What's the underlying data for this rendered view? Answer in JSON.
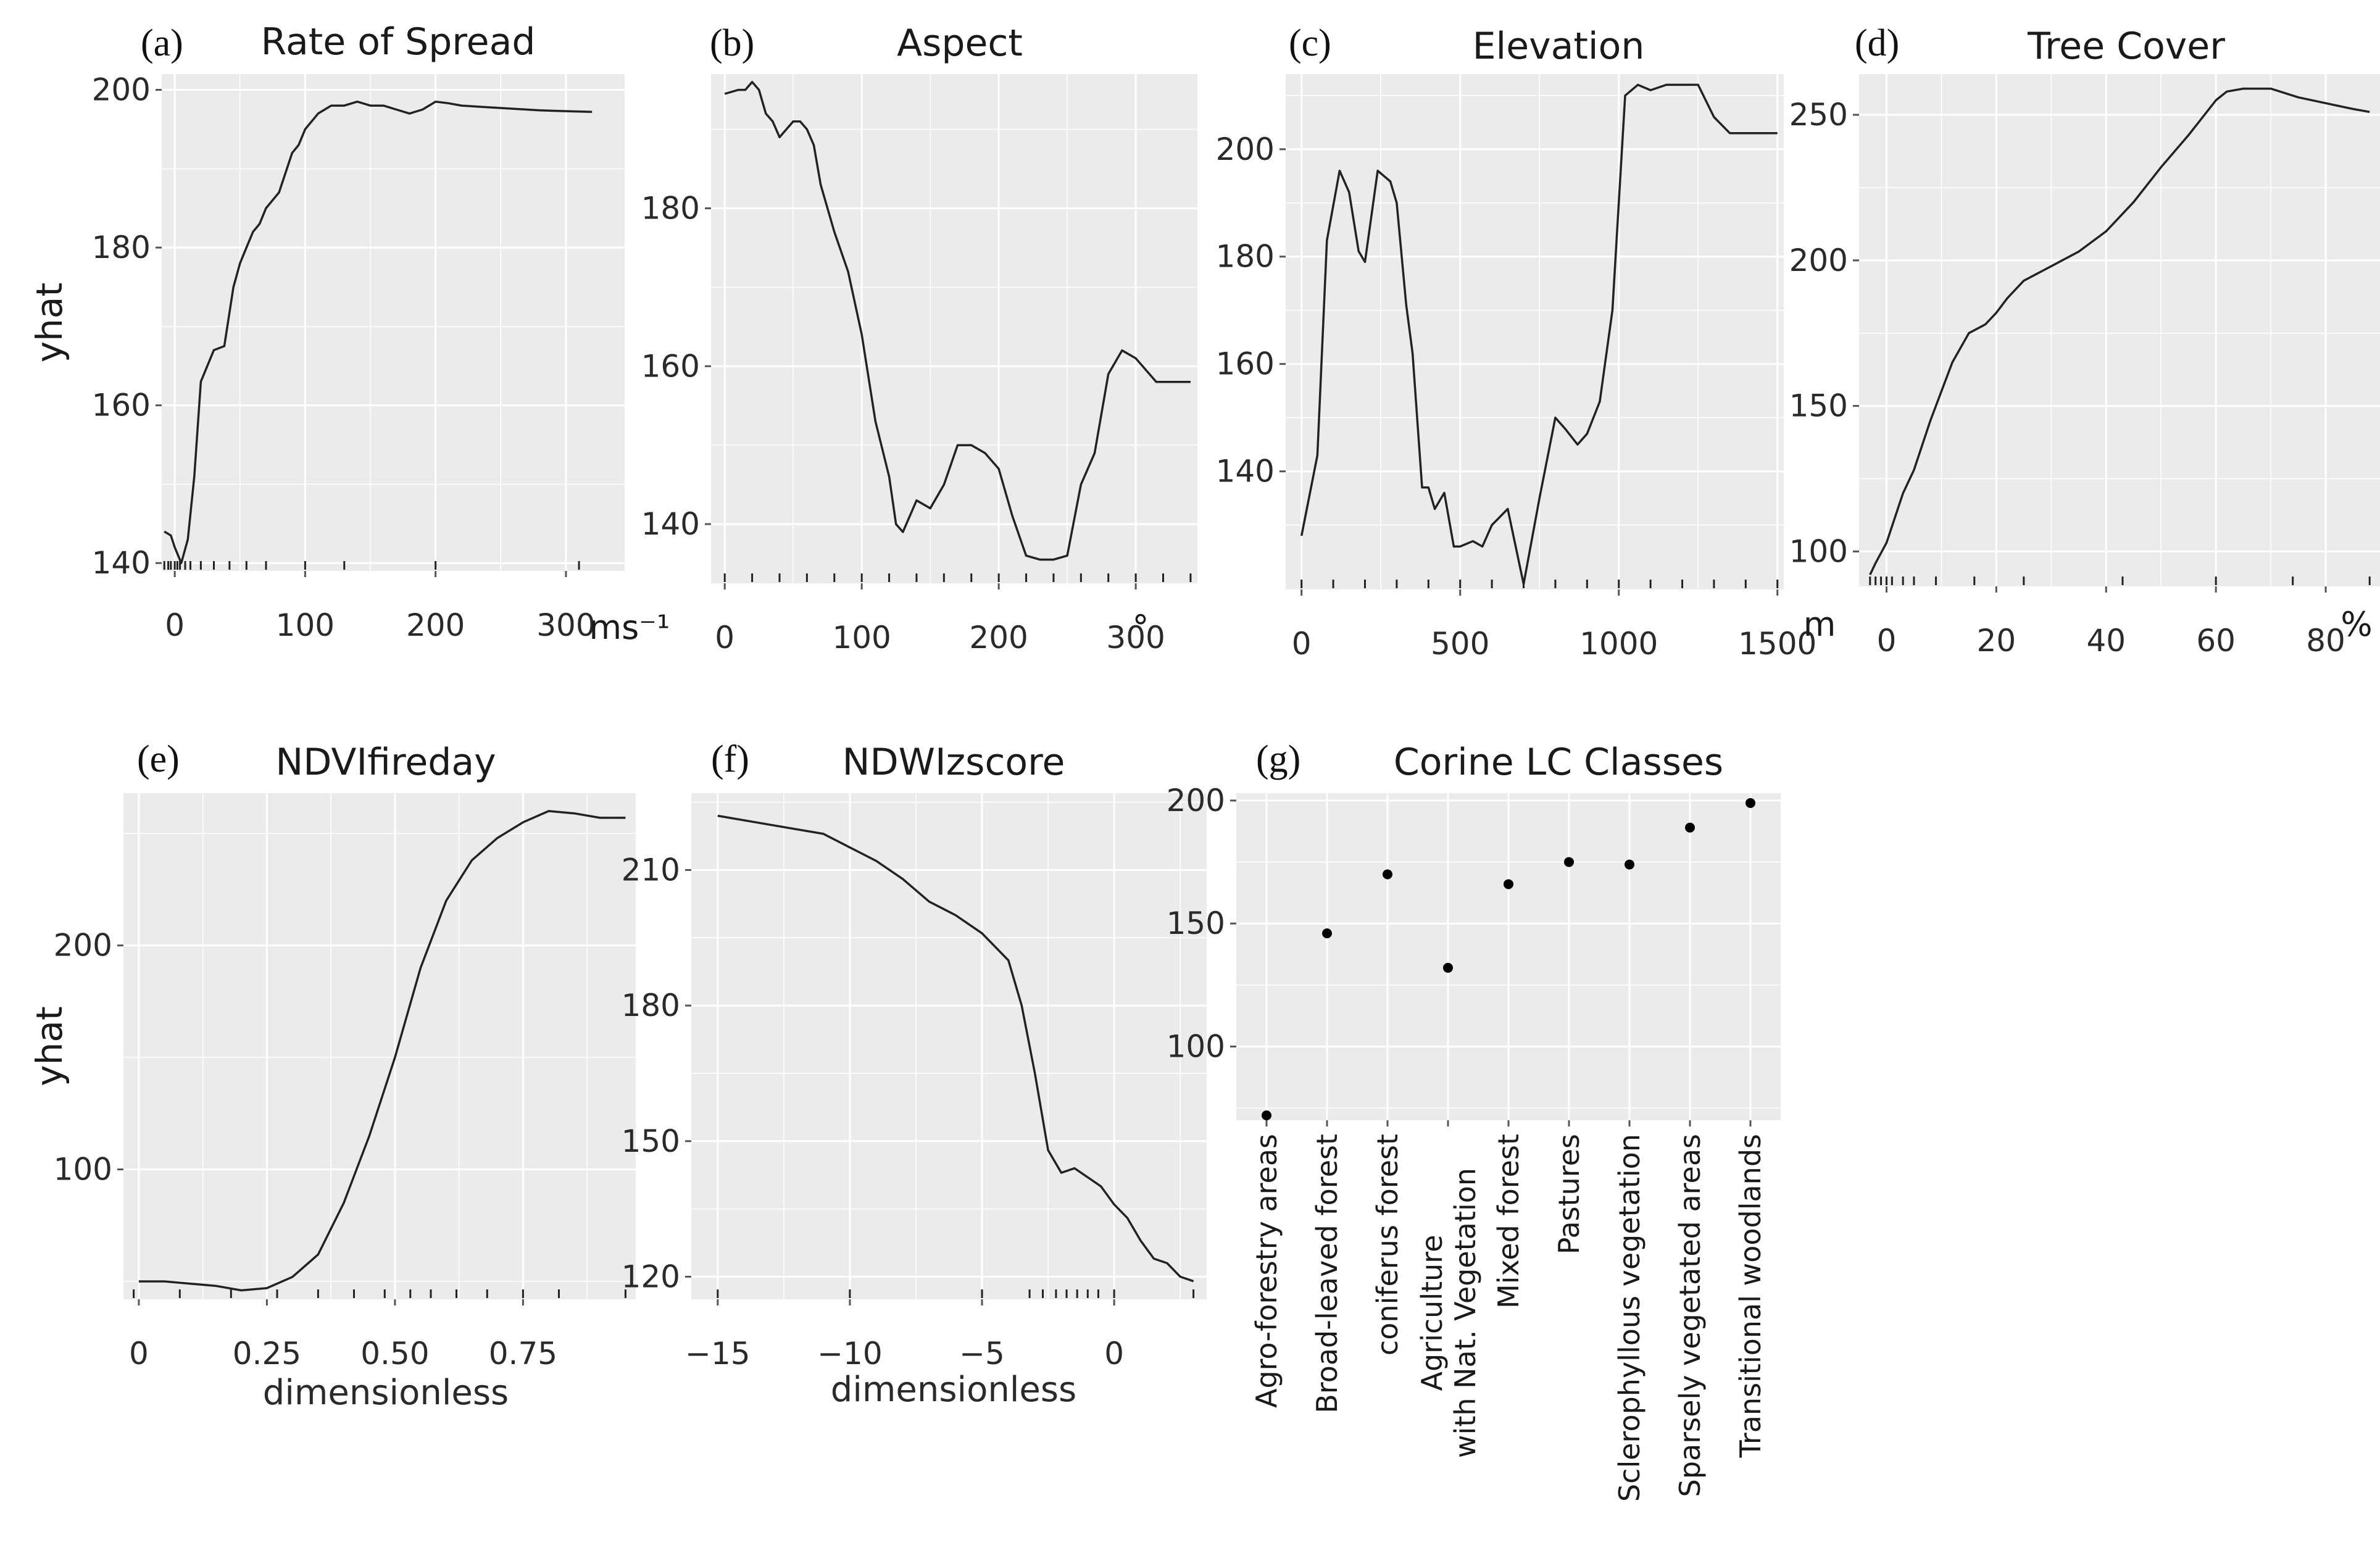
{
  "chart_data": [
    {
      "panel": "(a)",
      "type": "line",
      "title": "Rate of Spread",
      "ylabel": "yhat",
      "xlabel": "",
      "unit": "ms⁻¹",
      "xlim": [
        -10,
        345
      ],
      "ylim": [
        139,
        202
      ],
      "xticks": [
        0,
        100,
        200,
        300
      ],
      "yticks": [
        140,
        160,
        180,
        200
      ],
      "rug": [
        -8,
        -5,
        -3,
        0,
        2,
        4,
        8,
        12,
        20,
        30,
        42,
        55,
        70,
        100,
        130,
        200,
        310
      ],
      "x": [
        -8,
        -3,
        0,
        5,
        10,
        15,
        20,
        25,
        30,
        38,
        45,
        50,
        55,
        60,
        65,
        70,
        80,
        90,
        95,
        100,
        110,
        120,
        130,
        140,
        150,
        160,
        170,
        180,
        190,
        200,
        210,
        220,
        240,
        260,
        280,
        300,
        320
      ],
      "y": [
        144,
        143.5,
        142,
        140,
        143,
        151,
        163,
        165,
        167,
        167.5,
        175,
        178,
        180,
        182,
        183,
        185,
        187,
        192,
        193,
        195,
        197,
        198,
        198,
        198.5,
        198,
        198,
        197.5,
        197,
        197.5,
        198.5,
        198.3,
        198,
        197.8,
        197.6,
        197.4,
        197.3,
        197.2
      ]
    },
    {
      "panel": "(b)",
      "type": "line",
      "title": "Aspect",
      "ylabel": "",
      "xlabel": "",
      "unit": "°",
      "xlim": [
        -10,
        345
      ],
      "ylim": [
        132.5,
        197
      ],
      "xticks": [
        0,
        100,
        200,
        300
      ],
      "yticks": [
        140,
        160,
        180
      ],
      "rug": [
        0,
        20,
        40,
        60,
        80,
        100,
        120,
        140,
        160,
        180,
        200,
        220,
        240,
        260,
        280,
        300,
        320,
        340
      ],
      "x": [
        0,
        10,
        15,
        20,
        25,
        30,
        35,
        40,
        50,
        55,
        60,
        65,
        70,
        80,
        90,
        100,
        110,
        120,
        125,
        130,
        140,
        150,
        160,
        170,
        180,
        190,
        200,
        210,
        220,
        230,
        240,
        250,
        260,
        270,
        280,
        290,
        300,
        310,
        315,
        320,
        325,
        330,
        335,
        340
      ],
      "y": [
        194.5,
        195,
        195,
        196,
        195,
        192,
        191,
        189,
        191,
        191,
        190,
        188,
        183,
        177,
        172,
        164,
        153,
        146,
        140,
        139,
        143,
        142,
        145,
        150,
        150,
        149,
        147,
        141,
        136,
        135.5,
        135.5,
        136,
        145,
        149,
        159,
        162,
        161,
        159,
        158,
        158,
        158,
        158,
        158,
        158
      ]
    },
    {
      "panel": "(c)",
      "type": "line",
      "title": "Elevation",
      "ylabel": "",
      "xlabel": "",
      "unit": "m",
      "xlim": [
        -50,
        1520
      ],
      "ylim": [
        118,
        214
      ],
      "xticks": [
        0,
        500,
        1000,
        1500
      ],
      "yticks": [
        140,
        160,
        180,
        200
      ],
      "rug": [
        0,
        100,
        200,
        300,
        400,
        500,
        600,
        700,
        800,
        900,
        1000,
        1100,
        1200,
        1300,
        1400,
        1500
      ],
      "x": [
        0,
        50,
        80,
        120,
        150,
        180,
        200,
        240,
        280,
        300,
        330,
        350,
        380,
        400,
        420,
        450,
        480,
        500,
        540,
        570,
        600,
        650,
        700,
        750,
        800,
        830,
        870,
        900,
        940,
        980,
        1020,
        1060,
        1100,
        1150,
        1200,
        1250,
        1300,
        1350,
        1400,
        1450,
        1500
      ],
      "y": [
        128,
        143,
        183,
        196,
        192,
        181,
        179,
        196,
        194,
        190,
        171,
        162,
        137,
        137,
        133,
        136,
        126,
        126,
        127,
        126,
        130,
        133,
        119,
        135,
        150,
        148,
        145,
        147,
        153,
        170,
        210,
        212,
        211,
        212,
        212,
        212,
        206,
        203,
        203,
        203,
        203
      ]
    },
    {
      "panel": "(d)",
      "type": "line",
      "title": "Tree Cover",
      "ylabel": "",
      "xlabel": "",
      "unit": "%",
      "xlim": [
        -5,
        90
      ],
      "ylim": [
        88,
        264
      ],
      "xticks": [
        0,
        20,
        40,
        60,
        80
      ],
      "yticks": [
        100,
        150,
        200,
        250
      ],
      "rug": [
        -3,
        -2,
        -1,
        0,
        1,
        3,
        5,
        9,
        16,
        25,
        43,
        60,
        74,
        88
      ],
      "x": [
        -3,
        -2,
        0,
        3,
        5,
        8,
        10,
        12,
        15,
        18,
        20,
        22,
        25,
        30,
        35,
        40,
        45,
        50,
        55,
        60,
        62,
        65,
        70,
        75,
        80,
        85,
        88
      ],
      "y": [
        92,
        96,
        103,
        120,
        128,
        145,
        155,
        165,
        175,
        178,
        182,
        187,
        193,
        198,
        203,
        210,
        220,
        232,
        243,
        255,
        258,
        259,
        259,
        256,
        254,
        252,
        251
      ]
    },
    {
      "panel": "(e)",
      "type": "line",
      "title": "NDVIfireday",
      "ylabel": "yhat",
      "xlabel": "dimensionless",
      "unit": "",
      "xlim": [
        -0.03,
        0.97
      ],
      "ylim": [
        42,
        268
      ],
      "xticks": [
        0,
        0.25,
        0.5,
        0.75
      ],
      "xtick_labels": [
        "0",
        "0.25",
        "0.50",
        "0.75"
      ],
      "yticks": [
        100,
        200
      ],
      "rug": [
        -0.01,
        0.08,
        0.18,
        0.27,
        0.35,
        0.42,
        0.48,
        0.53,
        0.57,
        0.62,
        0.68,
        0.75,
        0.82,
        0.95
      ],
      "x": [
        0,
        0.05,
        0.1,
        0.15,
        0.2,
        0.25,
        0.3,
        0.35,
        0.4,
        0.45,
        0.5,
        0.55,
        0.6,
        0.65,
        0.7,
        0.75,
        0.8,
        0.85,
        0.9,
        0.95
      ],
      "y": [
        50,
        50,
        49,
        48,
        46,
        47,
        52,
        62,
        85,
        115,
        150,
        190,
        220,
        238,
        248,
        255,
        260,
        259,
        257,
        257
      ]
    },
    {
      "panel": "(f)",
      "type": "line",
      "title": "NDWIzscore",
      "ylabel": "",
      "xlabel": "dimensionless",
      "unit": "",
      "xlim": [
        -16,
        3.5
      ],
      "ylim": [
        115,
        227
      ],
      "xticks": [
        -15,
        -10,
        -5,
        0
      ],
      "yticks": [
        120,
        150,
        180,
        210
      ],
      "rug": [
        -15,
        -10,
        -5,
        -3.2,
        -2.7,
        -2.2,
        -1.8,
        -1.4,
        -1,
        -0.6,
        0,
        3
      ],
      "x": [
        -15,
        -13,
        -11,
        -10,
        -9,
        -8,
        -7,
        -6,
        -5,
        -4,
        -3.5,
        -3,
        -2.5,
        -2,
        -1.5,
        -1,
        -0.5,
        0,
        0.5,
        1,
        1.5,
        2,
        2.5,
        3
      ],
      "y": [
        222,
        220,
        218,
        215,
        212,
        208,
        203,
        200,
        196,
        190,
        180,
        165,
        148,
        143,
        144,
        142,
        140,
        136,
        133,
        128,
        124,
        123,
        120,
        119
      ]
    },
    {
      "panel": "(g)",
      "type": "scatter",
      "title": "Corine LC Classes",
      "ylabel": "",
      "xlabel": "",
      "unit": "",
      "ylim": [
        70,
        203
      ],
      "yticks": [
        100,
        150,
        200
      ],
      "categories": [
        "Agro-forestry areas",
        "Broad-leaved forest",
        "coniferus forest",
        "Agriculture\nwith Nat. Vegetation",
        "Mixed forest",
        "Pastures",
        "Sclerophyllous vegetation",
        "Sparsely vegetated areas",
        "Transitional woodlands"
      ],
      "values": [
        72,
        146,
        170,
        132,
        166,
        175,
        174,
        189,
        199
      ]
    }
  ]
}
